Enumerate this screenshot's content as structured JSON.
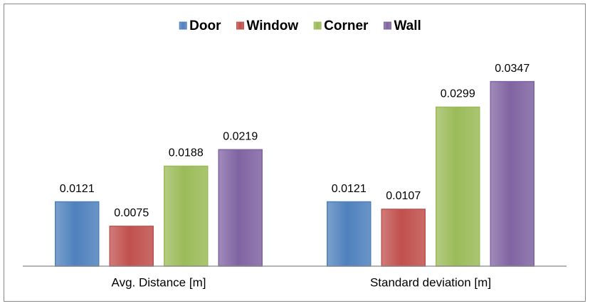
{
  "chart_data": {
    "type": "bar",
    "categories": [
      "Avg. Distance [m]",
      "Standard deviation [m]"
    ],
    "series": [
      {
        "name": "Door",
        "color": "#4f81bd",
        "values": [
          0.0121,
          0.0121
        ]
      },
      {
        "name": "Window",
        "color": "#c0504d",
        "values": [
          0.0075,
          0.0107
        ]
      },
      {
        "name": "Corner",
        "color": "#9bbb59",
        "values": [
          0.0188,
          0.0299
        ]
      },
      {
        "name": "Wall",
        "color": "#8064a2",
        "values": [
          0.0219,
          0.0347
        ]
      }
    ],
    "ylim": [
      0,
      0.04
    ],
    "legend": "top"
  }
}
